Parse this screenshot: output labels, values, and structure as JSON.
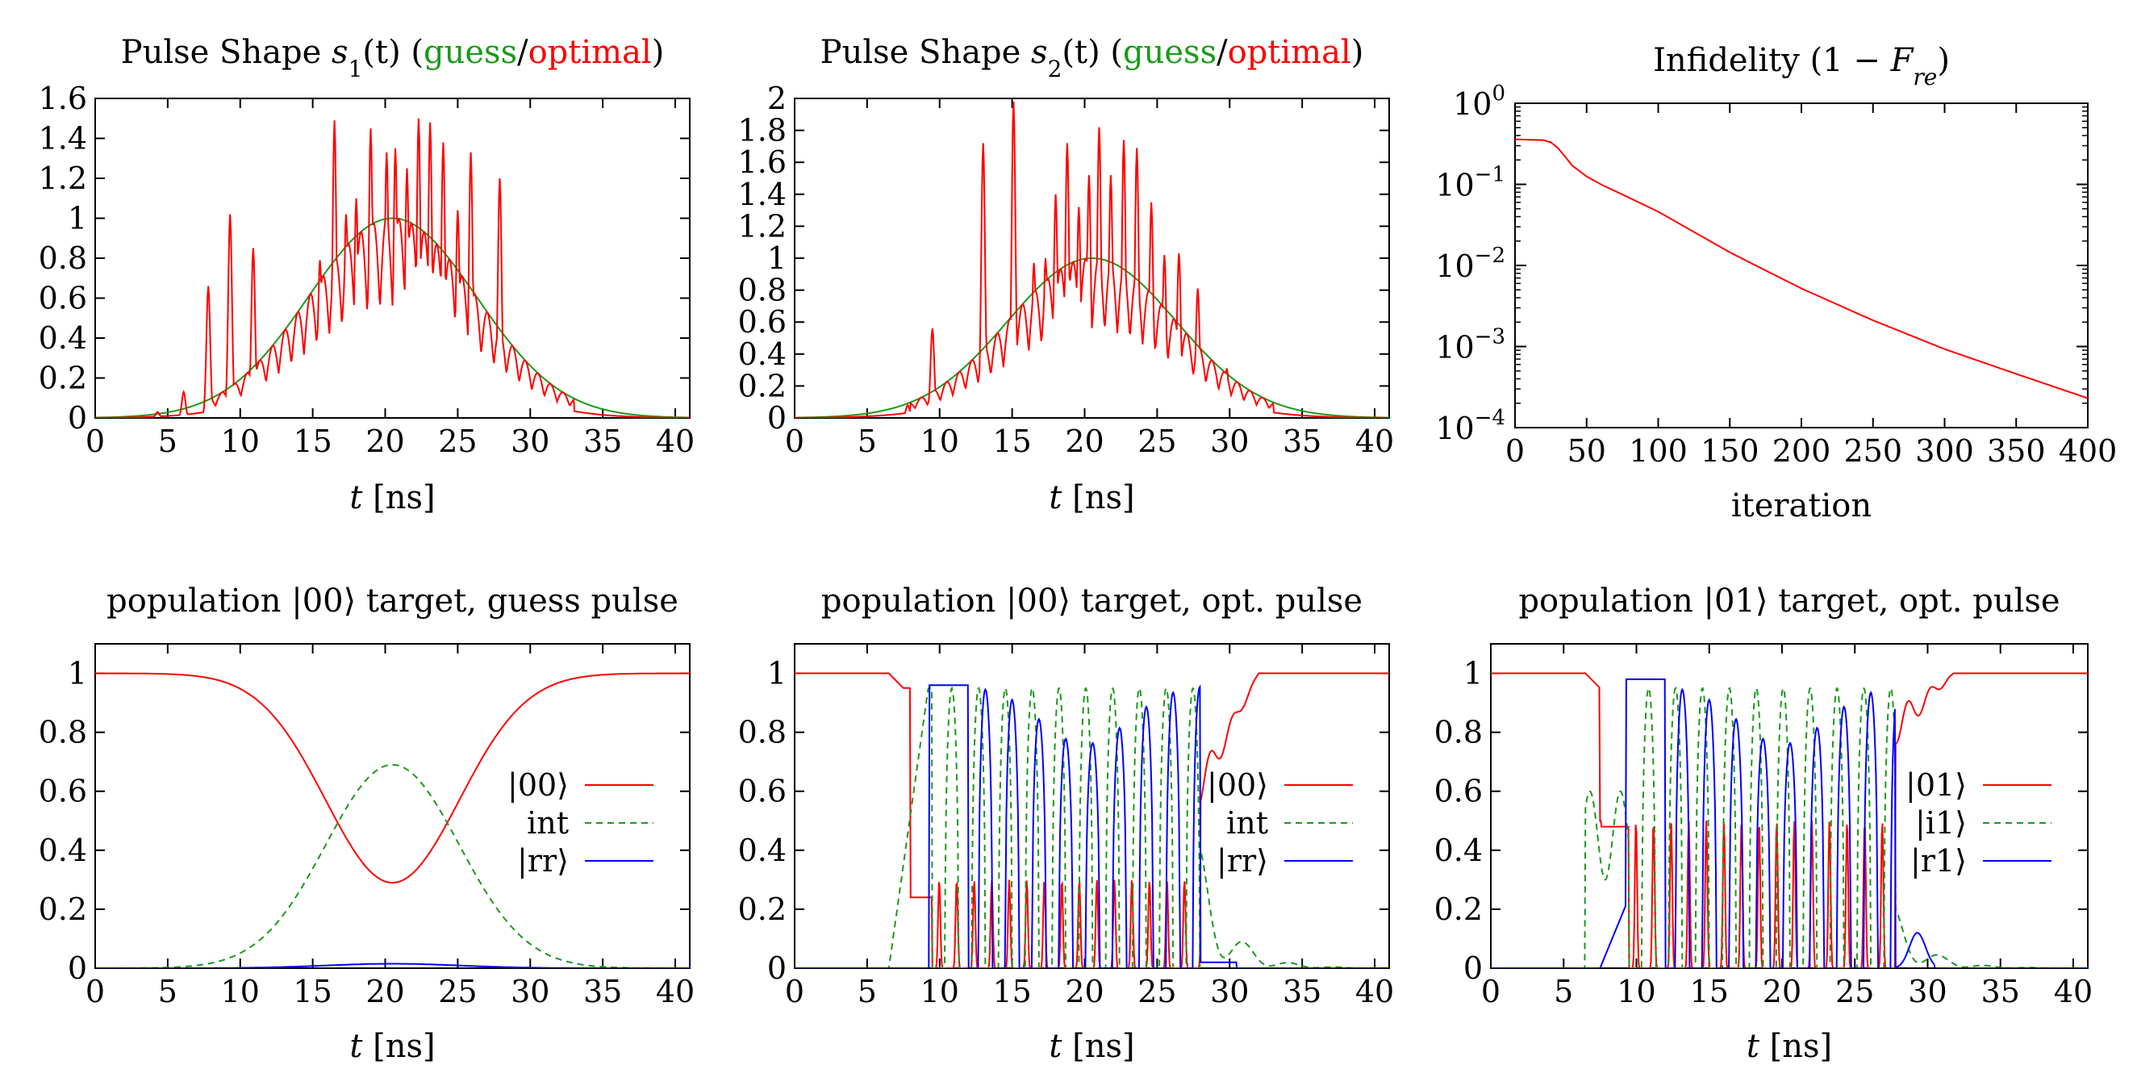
{
  "chart_data": [
    {
      "id": "p1",
      "type": "line",
      "title_parts": [
        {
          "t": "Pulse Shape "
        },
        {
          "t": "s",
          "i": true
        },
        {
          "t": "1",
          "sub": true
        },
        {
          "t": "(t) ("
        },
        {
          "t": "guess",
          "c": "#1a9a1a"
        },
        {
          "t": "/"
        },
        {
          "t": "optimal",
          "c": "#ff0000"
        },
        {
          "t": ")"
        }
      ],
      "xlabel_parts": [
        {
          "t": "t",
          "i": true
        },
        {
          "t": " [ns]"
        }
      ],
      "xlim": [
        0,
        41
      ],
      "ylim": [
        0,
        1.6
      ],
      "xticks": [
        0,
        5,
        10,
        15,
        20,
        25,
        30,
        35,
        40
      ],
      "xtick_labels": [
        "0",
        "5",
        "10",
        "15",
        "20",
        "25",
        "30",
        "35",
        "40"
      ],
      "yticks": [
        0,
        0.2,
        0.4,
        0.6,
        0.8,
        1.0,
        1.2,
        1.4,
        1.6
      ],
      "ytick_labels": [
        "0",
        "0.2",
        "0.4",
        "0.6",
        "0.8",
        "1",
        "1.2",
        "1.4",
        "1.6"
      ],
      "series": [
        {
          "color": "#1a9a1a",
          "dash": "",
          "gen": "gauss",
          "amp": 1.0,
          "mu": 20.5,
          "sig": 5.8
        },
        {
          "color": "#ff0000",
          "dash": "",
          "gen": "spiky_gauss",
          "amp": 1.0,
          "mu": 20.5,
          "sig": 5.8,
          "peaks": [
            [
              4.3,
              0.03
            ],
            [
              6.1,
              0.13
            ],
            [
              7.8,
              0.66
            ],
            [
              9.3,
              1.02
            ],
            [
              10.9,
              0.85
            ],
            [
              12.7,
              0.14
            ],
            [
              13.9,
              0.42
            ],
            [
              14.7,
              0.54
            ],
            [
              15.5,
              0.79
            ],
            [
              16.5,
              1.49
            ],
            [
              17.3,
              1.02
            ],
            [
              18.0,
              1.1
            ],
            [
              19.0,
              1.45
            ],
            [
              20.1,
              1.33
            ],
            [
              20.7,
              1.35
            ],
            [
              21.5,
              1.25
            ],
            [
              22.3,
              1.5
            ],
            [
              23.1,
              1.48
            ],
            [
              24.0,
              1.38
            ],
            [
              25.0,
              1.04
            ],
            [
              25.9,
              1.33
            ],
            [
              27.9,
              1.2
            ],
            [
              29.9,
              0.2
            ],
            [
              31.5,
              0.12
            ],
            [
              33.1,
              0.03
            ]
          ]
        }
      ]
    },
    {
      "id": "p2",
      "type": "line",
      "title_parts": [
        {
          "t": "Pulse Shape "
        },
        {
          "t": "s",
          "i": true
        },
        {
          "t": "2",
          "sub": true
        },
        {
          "t": "(t) ("
        },
        {
          "t": "guess",
          "c": "#1a9a1a"
        },
        {
          "t": "/"
        },
        {
          "t": "optimal",
          "c": "#ff0000"
        },
        {
          "t": ")"
        }
      ],
      "xlabel_parts": [
        {
          "t": "t",
          "i": true
        },
        {
          "t": " [ns]"
        }
      ],
      "xlim": [
        0,
        41
      ],
      "ylim": [
        0,
        2
      ],
      "xticks": [
        0,
        5,
        10,
        15,
        20,
        25,
        30,
        35,
        40
      ],
      "xtick_labels": [
        "0",
        "5",
        "10",
        "15",
        "20",
        "25",
        "30",
        "35",
        "40"
      ],
      "yticks": [
        0,
        0.2,
        0.4,
        0.6,
        0.8,
        1.0,
        1.2,
        1.4,
        1.6,
        1.8,
        2.0
      ],
      "ytick_labels": [
        "0",
        "0.2",
        "0.4",
        "0.6",
        "0.8",
        "1",
        "1.2",
        "1.4",
        "1.6",
        "1.8",
        "2"
      ],
      "series": [
        {
          "color": "#1a9a1a",
          "dash": "",
          "gen": "gauss",
          "amp": 1.0,
          "mu": 20.5,
          "sig": 5.8
        },
        {
          "color": "#ff0000",
          "dash": "",
          "gen": "spiky_gauss",
          "amp": 1.0,
          "mu": 20.5,
          "sig": 5.8,
          "peaks": [
            [
              7.8,
              0.08
            ],
            [
              9.5,
              0.56
            ],
            [
              13.0,
              1.72
            ],
            [
              15.1,
              1.98
            ],
            [
              16.5,
              0.97
            ],
            [
              17.3,
              1.0
            ],
            [
              18.0,
              1.4
            ],
            [
              18.8,
              1.72
            ],
            [
              19.6,
              1.32
            ],
            [
              20.3,
              1.52
            ],
            [
              21.0,
              1.82
            ],
            [
              21.8,
              1.52
            ],
            [
              22.7,
              1.74
            ],
            [
              23.6,
              1.69
            ],
            [
              24.6,
              1.35
            ],
            [
              25.5,
              1.02
            ],
            [
              26.5,
              1.03
            ],
            [
              27.8,
              0.81
            ],
            [
              29.8,
              0.31
            ]
          ]
        }
      ]
    },
    {
      "id": "p3",
      "type": "line",
      "logy": true,
      "title_parts": [
        {
          "t": "Infidelity (1 − "
        },
        {
          "t": "F",
          "i": true
        },
        {
          "t": "re",
          "sub": true,
          "i": true
        },
        {
          "t": ")"
        }
      ],
      "xlabel_parts": [
        {
          "t": "iteration"
        }
      ],
      "xlim": [
        0,
        400
      ],
      "ylim_exp": [
        -4,
        0
      ],
      "xticks": [
        0,
        50,
        100,
        150,
        200,
        250,
        300,
        350,
        400
      ],
      "xtick_labels": [
        "0",
        "50",
        "100",
        "150",
        "200",
        "250",
        "300",
        "350",
        "400"
      ],
      "yticks_exp": [
        -4,
        -3,
        -2,
        -1,
        0
      ],
      "ytick_labels": [
        "10",
        "10",
        "10",
        "10",
        "10"
      ],
      "ytick_exponents": [
        "−4",
        "−3",
        "−2",
        "−1",
        "0"
      ],
      "series": [
        {
          "color": "#ff0000",
          "dash": "",
          "x": [
            0,
            10,
            20,
            25,
            30,
            35,
            40,
            50,
            60,
            80,
            100,
            150,
            200,
            250,
            300,
            350,
            400
          ],
          "y": [
            0.36,
            0.355,
            0.35,
            0.33,
            0.28,
            0.22,
            0.17,
            0.125,
            0.1,
            0.068,
            0.046,
            0.0145,
            0.0052,
            0.0021,
            0.00093,
            0.00046,
            0.00023
          ]
        }
      ]
    },
    {
      "id": "p4",
      "type": "line",
      "title_parts": [
        {
          "t": "population |00⟩ target, guess pulse"
        }
      ],
      "xlabel_parts": [
        {
          "t": "t",
          "i": true
        },
        {
          "t": " [ns]"
        }
      ],
      "xlim": [
        0,
        41
      ],
      "ylim": [
        0,
        1.1
      ],
      "xticks": [
        0,
        5,
        10,
        15,
        20,
        25,
        30,
        35,
        40
      ],
      "xtick_labels": [
        "0",
        "5",
        "10",
        "15",
        "20",
        "25",
        "30",
        "35",
        "40"
      ],
      "yticks": [
        0,
        0.2,
        0.4,
        0.6,
        0.8,
        1.0
      ],
      "ytick_labels": [
        "0",
        "0.2",
        "0.4",
        "0.6",
        "0.8",
        "1"
      ],
      "legend": [
        "|00⟩",
        "int",
        "|rr⟩"
      ],
      "series": [
        {
          "color": "#ff0000",
          "dash": "",
          "gen": "guess_pop",
          "kind": "g"
        },
        {
          "color": "#1a9a1a",
          "dash": "8,6",
          "gen": "guess_pop",
          "kind": "int"
        },
        {
          "color": "#0000ff",
          "dash": "",
          "gen": "guess_pop",
          "kind": "rr"
        }
      ]
    },
    {
      "id": "p5",
      "type": "line",
      "title_parts": [
        {
          "t": "population |00⟩ target, opt. pulse"
        }
      ],
      "xlabel_parts": [
        {
          "t": "t",
          "i": true
        },
        {
          "t": " [ns]"
        }
      ],
      "xlim": [
        0,
        41
      ],
      "ylim": [
        0,
        1.1
      ],
      "xticks": [
        0,
        5,
        10,
        15,
        20,
        25,
        30,
        35,
        40
      ],
      "xtick_labels": [
        "0",
        "5",
        "10",
        "15",
        "20",
        "25",
        "30",
        "35",
        "40"
      ],
      "yticks": [
        0,
        0.2,
        0.4,
        0.6,
        0.8,
        1.0
      ],
      "ytick_labels": [
        "0",
        "0.2",
        "0.4",
        "0.6",
        "0.8",
        "1"
      ],
      "legend": [
        "|00⟩",
        "int",
        "|rr⟩"
      ],
      "series": [
        {
          "color": "#ff0000",
          "dash": "",
          "gen": "opt_pop",
          "kind": "g",
          "variant": "a"
        },
        {
          "color": "#1a9a1a",
          "dash": "8,6",
          "gen": "opt_pop",
          "kind": "i",
          "variant": "a"
        },
        {
          "color": "#0000ff",
          "dash": "",
          "gen": "opt_pop",
          "kind": "r",
          "variant": "a"
        }
      ]
    },
    {
      "id": "p6",
      "type": "line",
      "title_parts": [
        {
          "t": "population |01⟩ target, opt. pulse"
        }
      ],
      "xlabel_parts": [
        {
          "t": "t",
          "i": true
        },
        {
          "t": " [ns]"
        }
      ],
      "xlim": [
        0,
        41
      ],
      "ylim": [
        0,
        1.1
      ],
      "xticks": [
        0,
        5,
        10,
        15,
        20,
        25,
        30,
        35,
        40
      ],
      "xtick_labels": [
        "0",
        "5",
        "10",
        "15",
        "20",
        "25",
        "30",
        "35",
        "40"
      ],
      "yticks": [
        0,
        0.2,
        0.4,
        0.6,
        0.8,
        1.0
      ],
      "ytick_labels": [
        "0",
        "0.2",
        "0.4",
        "0.6",
        "0.8",
        "1"
      ],
      "legend": [
        "|01⟩",
        "|i1⟩",
        "|r1⟩"
      ],
      "series": [
        {
          "color": "#ff0000",
          "dash": "",
          "gen": "opt_pop",
          "kind": "g",
          "variant": "b"
        },
        {
          "color": "#1a9a1a",
          "dash": "8,6",
          "gen": "opt_pop",
          "kind": "i",
          "variant": "b"
        },
        {
          "color": "#0000ff",
          "dash": "",
          "gen": "opt_pop",
          "kind": "r",
          "variant": "b"
        }
      ]
    }
  ]
}
